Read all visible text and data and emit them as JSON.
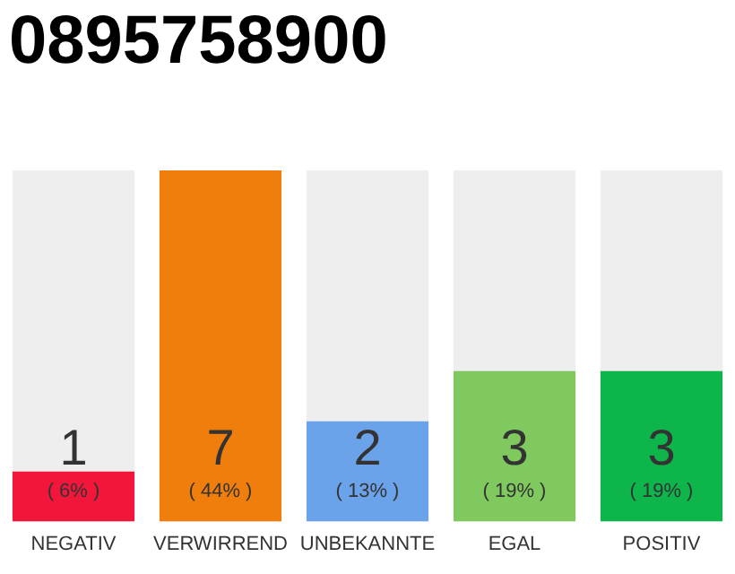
{
  "chart_data": {
    "type": "bar",
    "title": "0895758900",
    "categories": [
      "NEGATIV",
      "VERWIRREND",
      "UNBEKANNTE",
      "EGAL",
      "POSITIV"
    ],
    "values": [
      1,
      7,
      2,
      3,
      3
    ],
    "colors": [
      "#f3163b",
      "#f07e0c",
      "#6aa3ea",
      "#80c95f",
      "#0db54b"
    ],
    "ylim": [
      0,
      7
    ],
    "data_labels": true,
    "grid": false,
    "legend": false,
    "tick_labels": "x",
    "annotations": [
      "( 6% )",
      "( 44% )",
      "( 13% )",
      "( 19% )",
      "( 19% )"
    ]
  }
}
